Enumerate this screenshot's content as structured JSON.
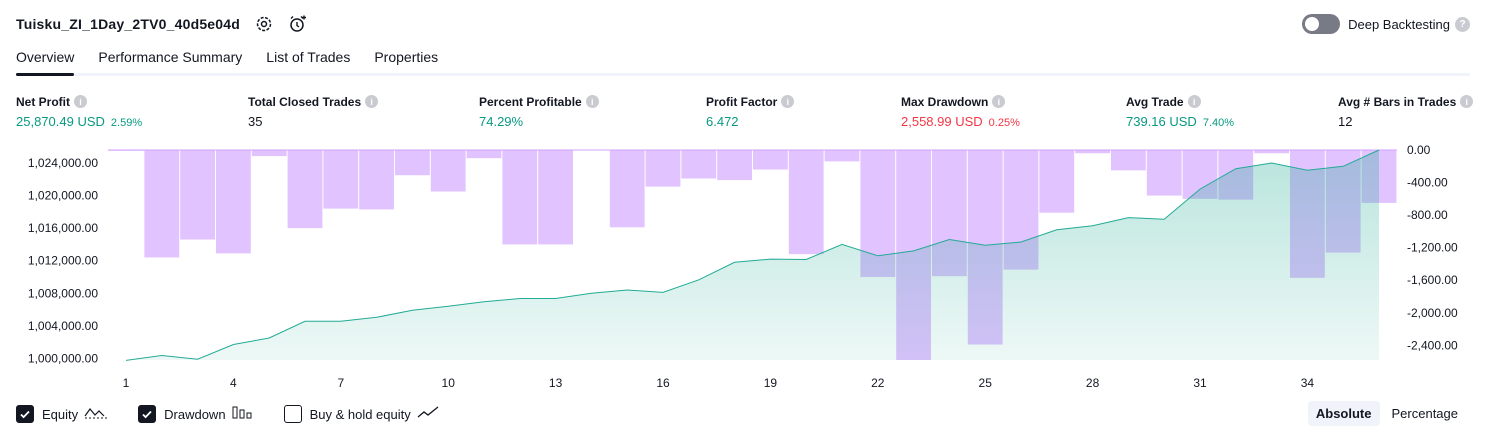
{
  "header": {
    "title": "Tuisku_ZI_1Day_2TV0_40d5e04d"
  },
  "deep_backtesting": {
    "label": "Deep Backtesting",
    "help": "?"
  },
  "tabs": [
    {
      "label": "Overview"
    },
    {
      "label": "Performance Summary"
    },
    {
      "label": "List of Trades"
    },
    {
      "label": "Properties"
    }
  ],
  "metrics": [
    {
      "label": "Net Profit",
      "value": "25,870.49 USD",
      "pct": "2.59%",
      "tone": "pos"
    },
    {
      "label": "Total Closed Trades",
      "value": "35",
      "pct": "",
      "tone": "plain"
    },
    {
      "label": "Percent Profitable",
      "value": "74.29%",
      "pct": "",
      "tone": "pos"
    },
    {
      "label": "Profit Factor",
      "value": "6.472",
      "pct": "",
      "tone": "pos"
    },
    {
      "label": "Max Drawdown",
      "value": "2,558.99 USD",
      "pct": "0.25%",
      "tone": "neg"
    },
    {
      "label": "Avg Trade",
      "value": "739.16 USD",
      "pct": "7.40%",
      "tone": "pos"
    },
    {
      "label": "Avg # Bars in Trades",
      "value": "12",
      "pct": "",
      "tone": "plain"
    }
  ],
  "legend": {
    "equity": "Equity",
    "drawdown": "Drawdown",
    "buy_hold": "Buy & hold equity"
  },
  "mode": {
    "absolute": "Absolute",
    "percentage": "Percentage"
  },
  "colors": {
    "equity_line": "#22ab94",
    "equity_fill": "#22ab94",
    "drawdown_bar": "#d1a3ff",
    "positive": "#089981",
    "negative": "#f23645"
  },
  "chart_data": {
    "type": "area",
    "x_ticks": [
      1,
      4,
      7,
      10,
      13,
      16,
      19,
      22,
      25,
      28,
      31,
      34
    ],
    "left_axis": {
      "ticks": [
        "1,000,000.00",
        "1,004,000.00",
        "1,008,000.00",
        "1,012,000.00",
        "1,016,000.00",
        "1,020,000.00",
        "1,024,000.00"
      ],
      "range": [
        999800,
        1025600
      ]
    },
    "right_axis": {
      "ticks": [
        "0.00",
        "-400.00",
        "-800.00",
        "-1,200.00",
        "-1,600.00",
        "-2,000.00",
        "-2,400.00"
      ],
      "range": [
        -2580,
        0
      ]
    },
    "series": [
      {
        "type": "area",
        "axis": "left",
        "x": [
          1,
          2,
          3,
          4,
          5,
          6,
          7,
          8,
          9,
          10,
          11,
          12,
          13,
          14,
          15,
          16,
          17,
          18,
          19,
          20,
          21,
          22,
          23,
          24,
          25,
          26,
          27,
          28,
          29,
          30,
          31,
          32,
          33,
          34,
          35,
          36
        ],
        "values": [
          999750,
          1000350,
          999900,
          1001700,
          1002500,
          1004550,
          1004550,
          1005050,
          1005900,
          1006400,
          1006950,
          1007350,
          1007350,
          1008000,
          1008400,
          1008100,
          1009650,
          1011800,
          1012200,
          1012150,
          1014000,
          1012600,
          1013200,
          1014600,
          1013900,
          1014300,
          1015800,
          1016300,
          1017300,
          1017100,
          1020800,
          1023300,
          1024000,
          1023100,
          1023600,
          1025600
        ]
      },
      {
        "type": "bar",
        "axis": "right",
        "x": [
          1,
          2,
          3,
          4,
          5,
          6,
          7,
          8,
          9,
          10,
          11,
          12,
          13,
          14,
          15,
          16,
          17,
          18,
          19,
          20,
          21,
          22,
          23,
          24,
          25,
          26,
          27,
          28,
          29,
          30,
          31,
          32,
          33,
          34,
          35,
          36
        ],
        "values": [
          -10,
          -1320,
          -1100,
          -1270,
          -75,
          -960,
          -720,
          -730,
          -310,
          -510,
          -100,
          -1160,
          -1160,
          0,
          -950,
          -450,
          -350,
          -370,
          -240,
          -1280,
          -140,
          -1560,
          -2580,
          -1550,
          -2390,
          -1470,
          -770,
          -40,
          -250,
          -560,
          -600,
          -610,
          -40,
          -1570,
          -1260,
          -650
        ]
      }
    ]
  }
}
